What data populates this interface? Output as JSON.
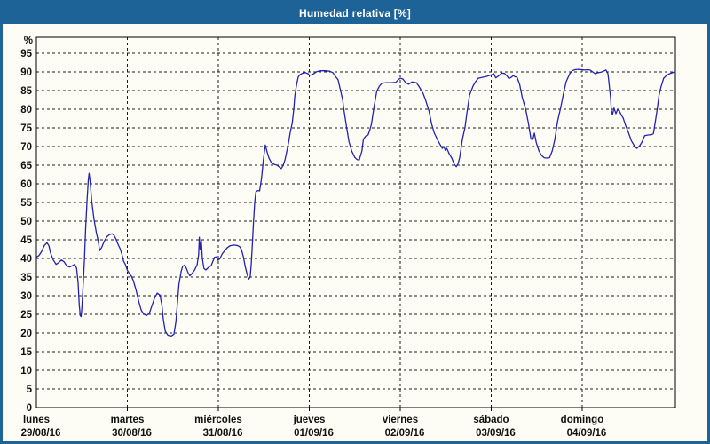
{
  "window": {
    "title": "Humedad relativa [%]",
    "title_bar_color": "#1e6397",
    "border_color": "#1e6397",
    "background_color": "#fdfdf5"
  },
  "chart_data": {
    "type": "line",
    "title": "Humedad relativa [%]",
    "xlabel": "",
    "ylabel": "%",
    "ylim": [
      0,
      99
    ],
    "y_ticks": [
      0,
      5,
      10,
      15,
      20,
      25,
      30,
      35,
      40,
      45,
      50,
      55,
      60,
      65,
      70,
      75,
      80,
      85,
      90,
      95
    ],
    "grid": "dashed",
    "legend": "none",
    "line_color": "#2222b2",
    "x_days": [
      {
        "name": "lunes",
        "date": "29/08/16"
      },
      {
        "name": "martes",
        "date": "30/08/16"
      },
      {
        "name": "miércoles",
        "date": "31/08/16"
      },
      {
        "name": "jueves",
        "date": "01/09/16"
      },
      {
        "name": "viernes",
        "date": "02/09/16"
      },
      {
        "name": "sábado",
        "date": "03/09/16"
      },
      {
        "name": "domingo",
        "date": "04/09/16"
      }
    ],
    "x_unit": "hours_from_monday_00",
    "x_range_hours": [
      0,
      168.6
    ],
    "series": [
      {
        "name": "Humedad relativa",
        "points": [
          [
            0,
            40.3
          ],
          [
            0.7,
            40.8
          ],
          [
            1.4,
            41.9
          ],
          [
            2.1,
            43.5
          ],
          [
            2.8,
            44.2
          ],
          [
            3.3,
            43.4
          ],
          [
            3.7,
            41.6
          ],
          [
            4.4,
            39.7
          ],
          [
            5.2,
            38.4
          ],
          [
            5.9,
            38.9
          ],
          [
            6.6,
            39.6
          ],
          [
            7.3,
            39.1
          ],
          [
            8,
            38
          ],
          [
            8.7,
            37.7
          ],
          [
            9.4,
            38
          ],
          [
            10.1,
            38.4
          ],
          [
            10.6,
            37.4
          ],
          [
            11,
            33.5
          ],
          [
            11.3,
            27.5
          ],
          [
            11.6,
            24.6
          ],
          [
            11.8,
            24.4
          ],
          [
            12,
            26.5
          ],
          [
            12.3,
            32
          ],
          [
            12.7,
            40
          ],
          [
            13,
            48
          ],
          [
            13.4,
            56
          ],
          [
            13.7,
            61
          ],
          [
            13.9,
            62.8
          ],
          [
            14.2,
            60.5
          ],
          [
            14.6,
            55.5
          ],
          [
            15.2,
            50.5
          ],
          [
            15.8,
            47
          ],
          [
            16.3,
            44.8
          ],
          [
            16.7,
            42.1
          ],
          [
            17.2,
            42.9
          ],
          [
            17.9,
            44.6
          ],
          [
            18.6,
            45.8
          ],
          [
            19.3,
            46.4
          ],
          [
            20,
            46.6
          ],
          [
            20.5,
            46.2
          ],
          [
            21,
            45.2
          ],
          [
            21.6,
            43.7
          ],
          [
            22.1,
            42.6
          ],
          [
            22.6,
            41
          ],
          [
            23,
            39.3
          ],
          [
            23.5,
            38.3
          ],
          [
            24,
            36.8
          ],
          [
            24.6,
            35.8
          ],
          [
            25.1,
            35.2
          ],
          [
            25.6,
            34
          ],
          [
            26.3,
            31.5
          ],
          [
            27,
            28.5
          ],
          [
            27.7,
            26
          ],
          [
            28.4,
            25
          ],
          [
            29.1,
            24.7
          ],
          [
            29.8,
            25.3
          ],
          [
            30.5,
            27.3
          ],
          [
            31.2,
            29.4
          ],
          [
            31.9,
            30.7
          ],
          [
            32.6,
            30.2
          ],
          [
            33.1,
            27.5
          ],
          [
            33.5,
            23.5
          ],
          [
            34,
            20.5
          ],
          [
            34.7,
            19.4
          ],
          [
            35.6,
            19.2
          ],
          [
            36.3,
            19.7
          ],
          [
            36.8,
            23
          ],
          [
            37.2,
            28
          ],
          [
            37.6,
            33
          ],
          [
            38.2,
            36.5
          ],
          [
            38.6,
            37.9
          ],
          [
            39.1,
            38.2
          ],
          [
            39.6,
            37.3
          ],
          [
            40.1,
            36
          ],
          [
            40.5,
            35.3
          ],
          [
            41,
            35.9
          ],
          [
            41.7,
            36.8
          ],
          [
            42.4,
            38.3
          ],
          [
            42.8,
            41
          ],
          [
            43,
            45.7
          ],
          [
            43.2,
            42.5
          ],
          [
            43.5,
            44.8
          ],
          [
            43.8,
            40
          ],
          [
            44.2,
            37.3
          ],
          [
            44.7,
            36.9
          ],
          [
            45.4,
            37.6
          ],
          [
            46.1,
            38.1
          ],
          [
            46.6,
            39.3
          ],
          [
            47,
            40.3
          ],
          [
            47.5,
            40.4
          ],
          [
            47.9,
            39.5
          ],
          [
            48.4,
            39.9
          ],
          [
            49,
            41.2
          ],
          [
            49.7,
            42.1
          ],
          [
            50.4,
            42.9
          ],
          [
            51.1,
            43.4
          ],
          [
            52,
            43.6
          ],
          [
            52.9,
            43.5
          ],
          [
            53.6,
            43.2
          ],
          [
            54.1,
            42.4
          ],
          [
            54.6,
            40.5
          ],
          [
            55.1,
            37.8
          ],
          [
            55.6,
            35.8
          ],
          [
            56,
            34.4
          ],
          [
            56.4,
            35
          ],
          [
            56.7,
            38.5
          ],
          [
            57,
            44
          ],
          [
            57.3,
            50
          ],
          [
            57.6,
            55
          ],
          [
            57.9,
            57.8
          ],
          [
            58.4,
            58.2
          ],
          [
            58.9,
            58.1
          ],
          [
            59.4,
            61.5
          ],
          [
            59.9,
            66.5
          ],
          [
            60.4,
            70.4
          ],
          [
            60.9,
            68.4
          ],
          [
            61.4,
            66.8
          ],
          [
            62,
            65.7
          ],
          [
            62.8,
            65.2
          ],
          [
            63.5,
            65
          ],
          [
            64.2,
            64.4
          ],
          [
            64.6,
            64.1
          ],
          [
            65.1,
            64.9
          ],
          [
            65.6,
            66.4
          ],
          [
            66.1,
            68.9
          ],
          [
            66.6,
            71.4
          ],
          [
            67,
            73.9
          ],
          [
            67.5,
            76.3
          ],
          [
            67.9,
            80
          ],
          [
            68.2,
            83.6
          ],
          [
            68.7,
            86.9
          ],
          [
            69.1,
            88.7
          ],
          [
            69.6,
            89.3
          ],
          [
            70.3,
            89.7
          ],
          [
            71,
            89.8
          ],
          [
            71.7,
            89.5
          ],
          [
            72,
            89.1
          ],
          [
            72.6,
            89.2
          ],
          [
            73.3,
            89.6
          ],
          [
            74,
            90.1
          ],
          [
            75,
            90.3
          ],
          [
            76.2,
            90.3
          ],
          [
            77.4,
            90.2
          ],
          [
            78.2,
            89.8
          ],
          [
            78.9,
            88.8
          ],
          [
            79.6,
            87.9
          ],
          [
            80.3,
            84.8
          ],
          [
            80.8,
            82.5
          ],
          [
            81.1,
            80.2
          ],
          [
            81.8,
            75.5
          ],
          [
            82.5,
            71.2
          ],
          [
            83.2,
            68.8
          ],
          [
            84,
            67.1
          ],
          [
            84.6,
            66.5
          ],
          [
            85.2,
            66.4
          ],
          [
            85.9,
            68.8
          ],
          [
            86.3,
            72
          ],
          [
            87,
            72.9
          ],
          [
            87.5,
            73.1
          ],
          [
            88,
            74.5
          ],
          [
            88.4,
            76
          ],
          [
            89.1,
            80.7
          ],
          [
            89.8,
            84.8
          ],
          [
            90.5,
            86.2
          ],
          [
            91.2,
            87
          ],
          [
            92.4,
            87.1
          ],
          [
            93.6,
            87.1
          ],
          [
            94.8,
            87.2
          ],
          [
            95.5,
            87.9
          ],
          [
            96,
            88.3
          ],
          [
            96.7,
            88.1
          ],
          [
            97.4,
            87.2
          ],
          [
            98.2,
            86.7
          ],
          [
            99.1,
            87.3
          ],
          [
            100.3,
            87.1
          ],
          [
            100.8,
            86.3
          ],
          [
            101.3,
            85.5
          ],
          [
            102,
            84.3
          ],
          [
            102.7,
            82.4
          ],
          [
            103.6,
            79.5
          ],
          [
            104.3,
            76
          ],
          [
            105,
            73.6
          ],
          [
            105.9,
            71.7
          ],
          [
            106.6,
            70.4
          ],
          [
            107.1,
            69.5
          ],
          [
            107.5,
            70
          ],
          [
            107.9,
            69
          ],
          [
            108.3,
            69.5
          ],
          [
            108.9,
            68.1
          ],
          [
            109.6,
            66.9
          ],
          [
            110.3,
            65.2
          ],
          [
            110.8,
            64.6
          ],
          [
            111.3,
            65.5
          ],
          [
            111.7,
            67.1
          ],
          [
            112.4,
            71.9
          ],
          [
            113.1,
            75.2
          ],
          [
            113.6,
            79
          ],
          [
            114.3,
            83.8
          ],
          [
            115.2,
            86.2
          ],
          [
            115.9,
            87.4
          ],
          [
            116.6,
            88.3
          ],
          [
            117.5,
            88.5
          ],
          [
            118.4,
            88.7
          ],
          [
            119.1,
            88.9
          ],
          [
            120,
            89.2
          ],
          [
            120.7,
            89.5
          ],
          [
            121.2,
            88.4
          ],
          [
            121.9,
            88.9
          ],
          [
            122.8,
            89.7
          ],
          [
            123.5,
            89.6
          ],
          [
            124.2,
            88.9
          ],
          [
            124.7,
            88.2
          ],
          [
            125.2,
            88.5
          ],
          [
            125.8,
            89
          ],
          [
            126.3,
            88.7
          ],
          [
            126.8,
            88.6
          ],
          [
            127.5,
            86.7
          ],
          [
            128.2,
            83.1
          ],
          [
            129.1,
            80
          ],
          [
            129.8,
            76.4
          ],
          [
            130.5,
            72
          ],
          [
            131,
            71.9
          ],
          [
            131.4,
            73.6
          ],
          [
            131.9,
            71
          ],
          [
            132.6,
            68.8
          ],
          [
            133.3,
            67.6
          ],
          [
            134,
            67
          ],
          [
            134.7,
            66.9
          ],
          [
            135.4,
            67
          ],
          [
            136.1,
            68.8
          ],
          [
            136.8,
            71.9
          ],
          [
            137.5,
            76.7
          ],
          [
            138.4,
            80.7
          ],
          [
            139.1,
            84.3
          ],
          [
            139.8,
            87.4
          ],
          [
            140.7,
            89.5
          ],
          [
            141.4,
            90.3
          ],
          [
            142.1,
            90.6
          ],
          [
            143,
            90.7
          ],
          [
            144,
            90.6
          ],
          [
            144.7,
            90.5
          ],
          [
            145.4,
            90.6
          ],
          [
            146.1,
            90.5
          ],
          [
            146.8,
            90
          ],
          [
            147.5,
            89.5
          ],
          [
            148.2,
            89.8
          ],
          [
            148.9,
            89.9
          ],
          [
            149.6,
            90.2
          ],
          [
            150.3,
            90.5
          ],
          [
            150.8,
            89.5
          ],
          [
            151,
            87.9
          ],
          [
            151.5,
            83.1
          ],
          [
            151.7,
            79.8
          ],
          [
            152,
            78.5
          ],
          [
            152.4,
            80.3
          ],
          [
            152.9,
            78.8
          ],
          [
            153.3,
            79.8
          ],
          [
            153.8,
            79.6
          ],
          [
            154.3,
            78.5
          ],
          [
            154.8,
            77.7
          ],
          [
            155.5,
            75.5
          ],
          [
            156.2,
            73.8
          ],
          [
            157,
            71.5
          ],
          [
            157.7,
            70.3
          ],
          [
            158.4,
            69.5
          ],
          [
            159.1,
            70.1
          ],
          [
            159.8,
            71.2
          ],
          [
            160.5,
            72.9
          ],
          [
            161.4,
            73.1
          ],
          [
            162.3,
            73.2
          ],
          [
            162.8,
            73.4
          ],
          [
            163.3,
            76.7
          ],
          [
            163.8,
            80
          ],
          [
            164.3,
            83.8
          ],
          [
            164.8,
            86
          ],
          [
            165.5,
            88.3
          ],
          [
            166.2,
            89
          ],
          [
            167,
            89.5
          ],
          [
            167.9,
            89.8
          ],
          [
            168.6,
            90
          ]
        ]
      }
    ]
  }
}
